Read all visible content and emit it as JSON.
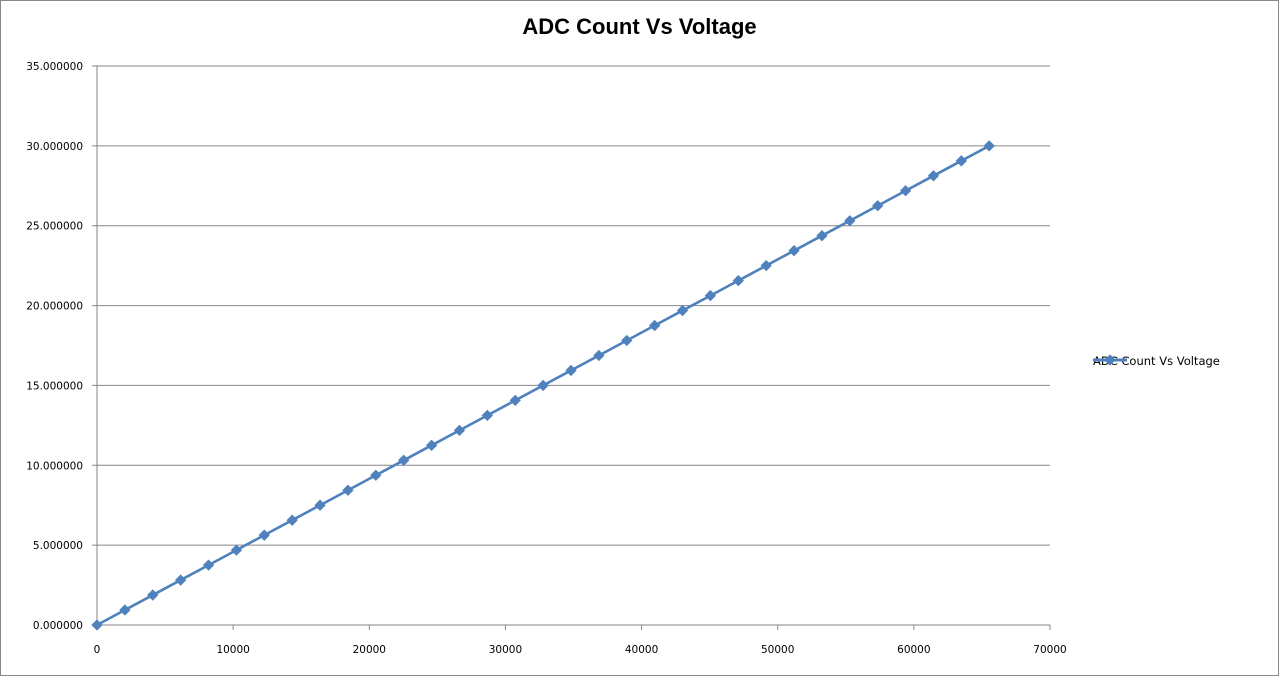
{
  "chart_data": {
    "type": "line",
    "title": "ADC Count Vs Voltage",
    "xlabel": "",
    "ylabel": "",
    "xlim": [
      0,
      70000
    ],
    "ylim": [
      0,
      35
    ],
    "x_ticks": [
      "0",
      "10000",
      "20000",
      "30000",
      "40000",
      "50000",
      "60000",
      "70000"
    ],
    "y_ticks": [
      "0.000000",
      "5.000000",
      "10.000000",
      "15.000000",
      "20.000000",
      "25.000000",
      "30.000000",
      "35.000000"
    ],
    "grid": "horizontal",
    "legend_position": "right",
    "series": [
      {
        "name": "ADC Count Vs Voltage",
        "color": "#4F81BD",
        "marker": "diamond",
        "x": [
          0,
          2048,
          4096,
          6144,
          8192,
          10240,
          12288,
          14336,
          16384,
          18432,
          20480,
          22528,
          24576,
          26624,
          28672,
          30720,
          32768,
          34816,
          36864,
          38912,
          40960,
          43008,
          45056,
          47104,
          49152,
          51200,
          53248,
          55296,
          57344,
          59392,
          61440,
          63488,
          65535
        ],
        "y": [
          0.0,
          0.9375,
          1.875,
          2.8125,
          3.75,
          4.6875,
          5.625,
          6.5625,
          7.5,
          8.4375,
          9.375,
          10.3125,
          11.25,
          12.1875,
          13.125,
          14.0625,
          15.0,
          15.9375,
          16.875,
          17.8125,
          18.75,
          19.6875,
          20.625,
          21.5625,
          22.5,
          23.4375,
          24.375,
          25.3125,
          26.25,
          27.1875,
          28.125,
          29.0625,
          30.0
        ]
      }
    ]
  },
  "legend": {
    "label": "ADC Count Vs Voltage"
  }
}
